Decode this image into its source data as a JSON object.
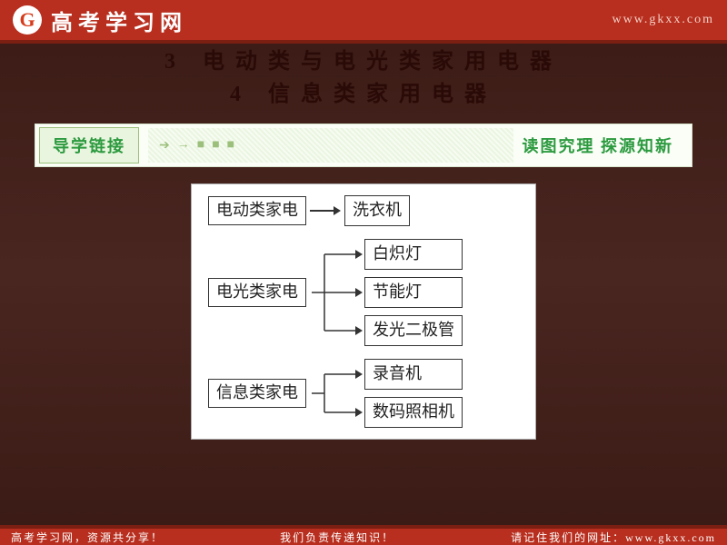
{
  "header": {
    "logo_text": "G",
    "title": "高考学习网",
    "url": "www.gkxx.com"
  },
  "titles": [
    {
      "num": "3",
      "text": "电动类与电光类家用电器"
    },
    {
      "num": "4",
      "text": "信息类家用电器"
    }
  ],
  "link_bar": {
    "badge": "导学链接",
    "right": "读图究理 探源知新"
  },
  "flowchart": {
    "card_bg": "#ffffff",
    "card_border": "#b0b0b0",
    "node_border": "#333333",
    "node_fontsize": 18,
    "arrow_color": "#333333",
    "groups": [
      {
        "source": "电动类家电",
        "targets": [
          "洗衣机"
        ]
      },
      {
        "source": "电光类家电",
        "targets": [
          "白炽灯",
          "节能灯",
          "发光二极管"
        ]
      },
      {
        "source": "信息类家电",
        "targets": [
          "录音机",
          "数码照相机"
        ]
      }
    ]
  },
  "footer": {
    "left": "高考学习网，资源共分享！",
    "mid": "我们负责传递知识！",
    "right": "请记住我们的网址：www.gkxx.com"
  },
  "colors": {
    "header_bg": "#b82f1f",
    "header_border": "#7a1f12",
    "page_bg_top": "#3a1a15",
    "green_text": "#2c9a3f",
    "badge_bg": "#e9f5de"
  }
}
